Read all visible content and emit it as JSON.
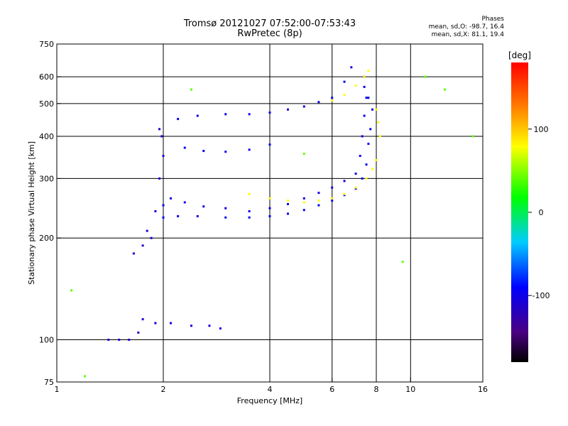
{
  "header": {
    "title": "Tromsø 20121027 07:52:00-07:53:43",
    "subtitle": "RwPretec (8p)"
  },
  "phase_info": {
    "heading": "Phases",
    "line_o": "mean, sd,O:  -98.7, 16.4",
    "line_x": "mean, sd,X:   81.1, 19.4"
  },
  "colorbar": {
    "unit_label": "[deg]",
    "tick_labels": [
      "100",
      "0",
      "-100"
    ],
    "tick_values": [
      100,
      0,
      -100
    ],
    "range": [
      -180,
      180
    ]
  },
  "chart_data": {
    "type": "scatter",
    "xlabel": "Frequency [MHz]",
    "ylabel": "Stationary phase Virtual Height [km]",
    "xscale": "log",
    "yscale": "log",
    "xlim": [
      1,
      16
    ],
    "ylim": [
      75,
      750
    ],
    "xticks": [
      1,
      2,
      4,
      6,
      8,
      10,
      16
    ],
    "yticks": [
      75,
      100,
      200,
      300,
      400,
      500,
      600,
      750
    ],
    "grid_x": [
      2,
      4,
      6,
      8,
      10
    ],
    "grid_y": [
      100,
      200,
      300,
      400,
      500,
      600
    ],
    "grid": true,
    "traces": [
      {
        "name": "",
        "phase": -95,
        "points": [
          [
            2.0,
            230
          ],
          [
            2.2,
            232
          ],
          [
            2.5,
            232
          ],
          [
            3.0,
            230
          ],
          [
            3.5,
            230
          ],
          [
            4.0,
            232
          ],
          [
            4.5,
            236
          ],
          [
            5.0,
            242
          ],
          [
            5.5,
            250
          ],
          [
            6.0,
            258
          ],
          [
            6.5,
            268
          ],
          [
            7.0,
            280
          ],
          [
            7.3,
            300
          ],
          [
            7.5,
            330
          ],
          [
            7.6,
            380
          ],
          [
            7.7,
            420
          ],
          [
            7.8,
            480
          ],
          [
            7.6,
            520
          ],
          [
            7.4,
            560
          ]
        ]
      },
      {
        "name": "",
        "phase": -100,
        "points": [
          [
            2.0,
            250
          ],
          [
            2.1,
            262
          ],
          [
            2.3,
            255
          ],
          [
            2.6,
            248
          ],
          [
            3.0,
            245
          ],
          [
            3.5,
            240
          ],
          [
            4.0,
            245
          ],
          [
            4.5,
            252
          ],
          [
            5.0,
            262
          ],
          [
            5.5,
            272
          ],
          [
            6.0,
            282
          ],
          [
            6.5,
            295
          ],
          [
            7.0,
            310
          ],
          [
            7.2,
            350
          ],
          [
            7.3,
            400
          ],
          [
            7.4,
            460
          ],
          [
            7.5,
            520
          ],
          [
            7.4,
            600
          ]
        ]
      },
      {
        "name": "",
        "phase": -110,
        "points": [
          [
            1.85,
            200
          ],
          [
            1.9,
            240
          ],
          [
            1.95,
            300
          ],
          [
            2.0,
            350
          ],
          [
            1.98,
            400
          ],
          [
            1.95,
            420
          ],
          [
            1.8,
            210
          ],
          [
            1.75,
            190
          ],
          [
            1.65,
            180
          ]
        ]
      },
      {
        "name": "",
        "phase": -100,
        "points": [
          [
            2.2,
            450
          ],
          [
            2.5,
            460
          ],
          [
            3.0,
            465
          ],
          [
            3.5,
            465
          ],
          [
            4.0,
            470
          ],
          [
            4.5,
            480
          ],
          [
            5.0,
            490
          ],
          [
            5.5,
            505
          ],
          [
            6.0,
            520
          ],
          [
            6.5,
            580
          ],
          [
            6.8,
            640
          ]
        ]
      },
      {
        "name": "",
        "phase": -98,
        "points": [
          [
            2.3,
            370
          ],
          [
            2.6,
            362
          ],
          [
            3.0,
            360
          ],
          [
            3.5,
            365
          ],
          [
            4.0,
            378
          ]
        ]
      },
      {
        "name": "",
        "phase": -105,
        "points": [
          [
            1.75,
            115
          ],
          [
            1.9,
            112
          ],
          [
            2.1,
            112
          ],
          [
            2.4,
            110
          ],
          [
            2.7,
            110
          ],
          [
            2.9,
            108
          ]
        ]
      },
      {
        "name": "",
        "phase": -110,
        "points": [
          [
            1.4,
            100
          ],
          [
            1.5,
            100
          ],
          [
            1.6,
            100
          ],
          [
            1.7,
            105
          ]
        ]
      },
      {
        "name": "",
        "phase": 80,
        "points": [
          [
            3.5,
            270
          ],
          [
            4.0,
            262
          ],
          [
            4.5,
            258
          ],
          [
            5.0,
            255
          ],
          [
            5.5,
            258
          ],
          [
            6.0,
            262
          ],
          [
            6.5,
            270
          ],
          [
            7.0,
            282
          ],
          [
            7.5,
            300
          ],
          [
            7.8,
            320
          ],
          [
            8.0,
            340
          ],
          [
            8.2,
            400
          ],
          [
            8.1,
            440
          ],
          [
            8.0,
            480
          ]
        ]
      },
      {
        "name": "",
        "phase": 80,
        "points": [
          [
            6.0,
            510
          ],
          [
            6.5,
            530
          ],
          [
            7.0,
            565
          ],
          [
            7.4,
            600
          ],
          [
            7.6,
            625
          ]
        ]
      },
      {
        "name": "",
        "phase": 40,
        "points": [
          [
            1.1,
            140
          ],
          [
            1.2,
            78
          ],
          [
            2.4,
            550
          ],
          [
            5.0,
            355
          ],
          [
            9.5,
            170
          ],
          [
            11.0,
            600
          ],
          [
            12.5,
            550
          ],
          [
            15.0,
            400
          ]
        ]
      }
    ]
  }
}
